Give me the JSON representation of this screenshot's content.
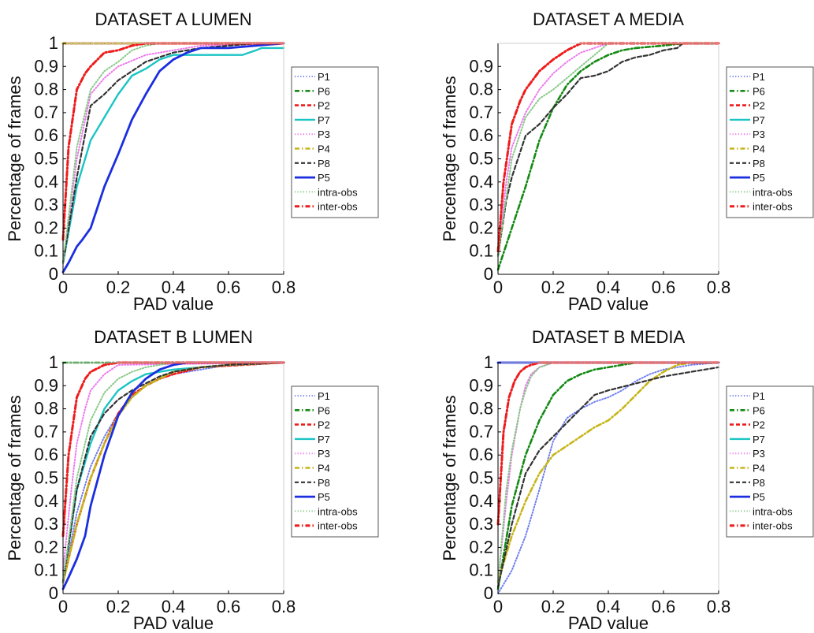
{
  "colors": {
    "P1": "#6f7ff0",
    "P6": "#138a13",
    "P2": "#ee1c1c",
    "P7": "#1cc4c4",
    "P3": "#ee77ee",
    "P4": "#c6b618",
    "P8": "#333333",
    "P5": "#1b2ee0",
    "intra-obs": "#87c987",
    "inter-obs": "#ee1c1c"
  },
  "chart_data": [
    {
      "type": "line",
      "title": "DATASET A LUMEN",
      "xlabel": "PAD value",
      "ylabel": "Percentage of frames",
      "xlim": [
        0,
        0.8
      ],
      "ylim": [
        0,
        1
      ],
      "xticks": [
        "0",
        "0.2",
        "0.4",
        "0.6",
        "0.8"
      ],
      "yticks": [
        "0",
        "0.1",
        "0.2",
        "0.3",
        "0.4",
        "0.5",
        "0.6",
        "0.7",
        "0.8",
        "0.9",
        "1"
      ],
      "legend": [
        "P1",
        "P6",
        "P2",
        "P7",
        "P3",
        "P4",
        "P8",
        "P5",
        "intra-obs",
        "inter-obs"
      ],
      "series": [
        {
          "name": "P1",
          "style": "dotted",
          "x": [
            0,
            0.8
          ],
          "y": [
            1,
            1
          ]
        },
        {
          "name": "P6",
          "style": "dashdot",
          "x": [
            0,
            0.8
          ],
          "y": [
            1,
            1
          ]
        },
        {
          "name": "P2",
          "style": "dashed",
          "x": [
            0,
            0.8
          ],
          "y": [
            1,
            1
          ]
        },
        {
          "name": "P7",
          "style": "solid",
          "x": [
            0,
            0.05,
            0.1,
            0.15,
            0.2,
            0.25,
            0.3,
            0.35,
            0.4,
            0.5,
            0.6,
            0.65,
            0.7,
            0.72,
            0.8
          ],
          "y": [
            0.05,
            0.38,
            0.58,
            0.68,
            0.78,
            0.86,
            0.89,
            0.93,
            0.95,
            0.95,
            0.95,
            0.95,
            0.97,
            0.98,
            0.98
          ]
        },
        {
          "name": "P3",
          "style": "dotted",
          "x": [
            0,
            0.05,
            0.1,
            0.15,
            0.2,
            0.3,
            0.4,
            0.5,
            0.8
          ],
          "y": [
            0.05,
            0.5,
            0.78,
            0.85,
            0.9,
            0.95,
            0.97,
            0.99,
            1
          ]
        },
        {
          "name": "P4",
          "style": "dashdot",
          "x": [
            0,
            0.8
          ],
          "y": [
            1,
            1
          ]
        },
        {
          "name": "P8",
          "style": "dashed",
          "x": [
            0,
            0.05,
            0.1,
            0.15,
            0.2,
            0.25,
            0.3,
            0.4,
            0.5,
            0.6,
            0.7,
            0.8
          ],
          "y": [
            0.05,
            0.42,
            0.73,
            0.78,
            0.84,
            0.88,
            0.92,
            0.96,
            0.98,
            0.99,
            1,
            1
          ]
        },
        {
          "name": "P5",
          "style": "solid",
          "x": [
            0,
            0.02,
            0.05,
            0.07,
            0.1,
            0.15,
            0.2,
            0.25,
            0.3,
            0.35,
            0.4,
            0.45,
            0.5,
            0.6,
            0.7,
            0.8
          ],
          "y": [
            0.01,
            0.05,
            0.12,
            0.15,
            0.2,
            0.38,
            0.52,
            0.67,
            0.78,
            0.88,
            0.93,
            0.96,
            0.98,
            0.98,
            0.99,
            1
          ]
        },
        {
          "name": "intra-obs",
          "style": "dotted",
          "x": [
            0,
            0.05,
            0.1,
            0.15,
            0.2,
            0.25,
            0.3,
            0.35,
            0.8
          ],
          "y": [
            0.05,
            0.55,
            0.8,
            0.88,
            0.92,
            0.97,
            0.99,
            1,
            1
          ]
        },
        {
          "name": "inter-obs",
          "style": "dashdot",
          "x": [
            0,
            0.02,
            0.05,
            0.08,
            0.1,
            0.15,
            0.2,
            0.25,
            0.3,
            0.35,
            0.8
          ],
          "y": [
            0.15,
            0.55,
            0.8,
            0.87,
            0.9,
            0.96,
            0.97,
            0.99,
            1,
            1,
            1
          ]
        }
      ]
    },
    {
      "type": "line",
      "title": "DATASET A MEDIA",
      "xlabel": "PAD value",
      "ylabel": "Percentage of frames",
      "xlim": [
        0,
        0.8
      ],
      "ylim": [
        0,
        1
      ],
      "xticks": [
        "0",
        "0.2",
        "0.4",
        "0.6",
        "0.8"
      ],
      "yticks": [
        "0",
        "0.1",
        "0.2",
        "0.3",
        "0.4",
        "0.5",
        "0.6",
        "0.7",
        "0.8",
        "0.9"
      ],
      "legend": [
        "P1",
        "P6",
        "P2",
        "P7",
        "P3",
        "P4",
        "P8",
        "P5",
        "intra-obs",
        "inter-obs"
      ],
      "series": [
        {
          "name": "P6",
          "style": "dashdot",
          "x": [
            0,
            0.05,
            0.1,
            0.15,
            0.2,
            0.25,
            0.3,
            0.35,
            0.4,
            0.45,
            0.5,
            0.6,
            0.67,
            0.8
          ],
          "y": [
            0.02,
            0.2,
            0.38,
            0.58,
            0.72,
            0.82,
            0.88,
            0.92,
            0.95,
            0.97,
            0.98,
            0.99,
            1,
            1
          ]
        },
        {
          "name": "P3",
          "style": "dotted",
          "x": [
            0,
            0.03,
            0.05,
            0.1,
            0.15,
            0.2,
            0.25,
            0.3,
            0.4,
            0.8
          ],
          "y": [
            0.08,
            0.4,
            0.55,
            0.7,
            0.8,
            0.87,
            0.92,
            0.96,
            1,
            1
          ]
        },
        {
          "name": "P8",
          "style": "dashed",
          "x": [
            0,
            0.03,
            0.05,
            0.1,
            0.15,
            0.2,
            0.25,
            0.3,
            0.35,
            0.4,
            0.45,
            0.5,
            0.55,
            0.6,
            0.65,
            0.67,
            0.8
          ],
          "y": [
            0.08,
            0.32,
            0.42,
            0.6,
            0.65,
            0.72,
            0.78,
            0.85,
            0.86,
            0.88,
            0.92,
            0.94,
            0.95,
            0.97,
            0.98,
            1,
            1
          ]
        },
        {
          "name": "intra-obs",
          "style": "dotted",
          "x": [
            0,
            0.05,
            0.1,
            0.15,
            0.2,
            0.25,
            0.3,
            0.35,
            0.4,
            0.8
          ],
          "y": [
            0.08,
            0.5,
            0.68,
            0.76,
            0.8,
            0.85,
            0.9,
            0.95,
            1,
            1
          ]
        },
        {
          "name": "inter-obs",
          "style": "dashdot",
          "x": [
            0,
            0.02,
            0.05,
            0.08,
            0.1,
            0.15,
            0.2,
            0.25,
            0.3,
            0.8
          ],
          "y": [
            0.1,
            0.4,
            0.65,
            0.75,
            0.8,
            0.88,
            0.93,
            0.97,
            1,
            1
          ]
        }
      ]
    },
    {
      "type": "line",
      "title": "DATASET B LUMEN",
      "xlabel": "PAD value",
      "ylabel": "Percentage of frames",
      "xlim": [
        0,
        0.8
      ],
      "ylim": [
        0,
        1
      ],
      "xticks": [
        "0",
        "0.2",
        "0.4",
        "0.6",
        "0.8"
      ],
      "yticks": [
        "0",
        "0.1",
        "0.2",
        "0.3",
        "0.4",
        "0.5",
        "0.6",
        "0.7",
        "0.8",
        "0.9",
        "1"
      ],
      "legend": [
        "P1",
        "P6",
        "P2",
        "P7",
        "P3",
        "P4",
        "P8",
        "P5",
        "intra-obs",
        "inter-obs"
      ],
      "series": [
        {
          "name": "P1",
          "style": "dotted",
          "x": [
            0,
            0.05,
            0.1,
            0.15,
            0.2,
            0.25,
            0.3,
            0.35,
            0.4,
            0.5,
            0.6,
            0.8
          ],
          "y": [
            0.05,
            0.35,
            0.55,
            0.68,
            0.78,
            0.85,
            0.9,
            0.93,
            0.95,
            0.97,
            0.99,
            1
          ]
        },
        {
          "name": "P6",
          "style": "dashdot",
          "x": [
            0,
            0.8
          ],
          "y": [
            1,
            1
          ]
        },
        {
          "name": "P2",
          "style": "dashed",
          "x": [
            0,
            0.05,
            0.1,
            0.15,
            0.2,
            0.25,
            0.3,
            0.35,
            0.4,
            0.5,
            0.8
          ],
          "y": [
            0.05,
            0.3,
            0.5,
            0.65,
            0.78,
            0.86,
            0.9,
            0.93,
            0.95,
            0.98,
            1
          ]
        },
        {
          "name": "P7",
          "style": "solid",
          "x": [
            0,
            0.05,
            0.1,
            0.15,
            0.2,
            0.25,
            0.3,
            0.35,
            0.4,
            0.5,
            0.6,
            0.8
          ],
          "y": [
            0.05,
            0.45,
            0.65,
            0.8,
            0.88,
            0.92,
            0.95,
            0.96,
            0.97,
            0.98,
            0.99,
            1
          ]
        },
        {
          "name": "P3",
          "style": "dotted",
          "x": [
            0,
            0.03,
            0.05,
            0.08,
            0.1,
            0.15,
            0.2,
            0.8
          ],
          "y": [
            0.1,
            0.45,
            0.65,
            0.8,
            0.88,
            0.95,
            0.99,
            1
          ]
        },
        {
          "name": "P4",
          "style": "dashdot",
          "x": [
            0,
            0.05,
            0.1,
            0.15,
            0.2,
            0.25,
            0.3,
            0.35,
            0.4,
            0.5,
            0.6,
            0.8
          ],
          "y": [
            0.05,
            0.3,
            0.5,
            0.65,
            0.77,
            0.85,
            0.9,
            0.93,
            0.96,
            0.98,
            0.99,
            1
          ]
        },
        {
          "name": "P8",
          "style": "dashed",
          "x": [
            0,
            0.05,
            0.1,
            0.15,
            0.2,
            0.25,
            0.3,
            0.35,
            0.4,
            0.5,
            0.6,
            0.8
          ],
          "y": [
            0.05,
            0.45,
            0.68,
            0.78,
            0.84,
            0.88,
            0.91,
            0.94,
            0.96,
            0.98,
            0.99,
            1
          ]
        },
        {
          "name": "P5",
          "style": "solid",
          "x": [
            0,
            0.02,
            0.05,
            0.08,
            0.1,
            0.15,
            0.2,
            0.25,
            0.3,
            0.35,
            0.4,
            0.45,
            0.8
          ],
          "y": [
            0.02,
            0.07,
            0.15,
            0.25,
            0.38,
            0.6,
            0.77,
            0.87,
            0.93,
            0.97,
            0.99,
            1,
            1
          ]
        },
        {
          "name": "intra-obs",
          "style": "dotted",
          "x": [
            0,
            0.05,
            0.1,
            0.15,
            0.2,
            0.25,
            0.3,
            0.35,
            0.4,
            0.8
          ],
          "y": [
            0.05,
            0.5,
            0.75,
            0.87,
            0.93,
            0.96,
            0.98,
            0.99,
            1,
            1
          ]
        },
        {
          "name": "inter-obs",
          "style": "dashdot",
          "x": [
            0,
            0.02,
            0.05,
            0.08,
            0.1,
            0.15,
            0.2,
            0.8
          ],
          "y": [
            0.25,
            0.6,
            0.85,
            0.93,
            0.96,
            0.99,
            1,
            1
          ]
        }
      ]
    },
    {
      "type": "line",
      "title": "DATASET B MEDIA",
      "xlabel": "PAD value",
      "ylabel": "Percentage of frames",
      "xlim": [
        0,
        0.8
      ],
      "ylim": [
        0,
        1
      ],
      "xticks": [
        "0",
        "0.2",
        "0.4",
        "0.6",
        "0.8"
      ],
      "yticks": [
        "0",
        "0.1",
        "0.2",
        "0.3",
        "0.4",
        "0.5",
        "0.6",
        "0.7",
        "0.8",
        "0.9",
        "1"
      ],
      "legend": [
        "P1",
        "P6",
        "P2",
        "P7",
        "P3",
        "P4",
        "P8",
        "P5",
        "intra-obs",
        "inter-obs"
      ],
      "series": [
        {
          "name": "P1",
          "style": "dotted",
          "x": [
            0,
            0.05,
            0.1,
            0.15,
            0.2,
            0.25,
            0.3,
            0.35,
            0.4,
            0.45,
            0.5,
            0.55,
            0.6,
            0.65,
            0.7,
            0.8
          ],
          "y": [
            0,
            0.1,
            0.25,
            0.45,
            0.66,
            0.76,
            0.8,
            0.83,
            0.85,
            0.88,
            0.92,
            0.95,
            0.97,
            0.98,
            0.99,
            1
          ]
        },
        {
          "name": "P6",
          "style": "dashdot",
          "x": [
            0,
            0.05,
            0.1,
            0.15,
            0.2,
            0.25,
            0.3,
            0.35,
            0.4,
            0.45,
            0.5,
            0.6,
            0.8
          ],
          "y": [
            0.02,
            0.38,
            0.6,
            0.75,
            0.86,
            0.92,
            0.95,
            0.97,
            0.98,
            0.99,
            1,
            1,
            1
          ]
        },
        {
          "name": "P5",
          "style": "solid",
          "x": [
            0,
            0.8
          ],
          "y": [
            1,
            1
          ]
        },
        {
          "name": "P3",
          "style": "dotted",
          "x": [
            0,
            0.03,
            0.05,
            0.08,
            0.1,
            0.12,
            0.15,
            0.2,
            0.8
          ],
          "y": [
            0.05,
            0.4,
            0.6,
            0.8,
            0.9,
            0.95,
            0.98,
            1,
            1
          ]
        },
        {
          "name": "P4",
          "style": "dashdot",
          "x": [
            0,
            0.05,
            0.1,
            0.15,
            0.2,
            0.25,
            0.3,
            0.35,
            0.4,
            0.45,
            0.5,
            0.55,
            0.6,
            0.65,
            0.7,
            0.8
          ],
          "y": [
            0.05,
            0.25,
            0.4,
            0.52,
            0.6,
            0.64,
            0.68,
            0.72,
            0.75,
            0.8,
            0.86,
            0.92,
            0.96,
            0.99,
            1,
            1
          ]
        },
        {
          "name": "P8",
          "style": "dashed",
          "x": [
            0,
            0.05,
            0.1,
            0.15,
            0.2,
            0.25,
            0.3,
            0.35,
            0.4,
            0.5,
            0.6,
            0.7,
            0.8
          ],
          "y": [
            0.03,
            0.3,
            0.52,
            0.62,
            0.68,
            0.74,
            0.8,
            0.86,
            0.88,
            0.91,
            0.94,
            0.96,
            0.98
          ]
        },
        {
          "name": "intra-obs",
          "style": "dotted",
          "x": [
            0,
            0.03,
            0.05,
            0.08,
            0.1,
            0.12,
            0.15,
            0.2,
            0.8
          ],
          "y": [
            0.05,
            0.45,
            0.62,
            0.8,
            0.88,
            0.94,
            0.98,
            1,
            1
          ]
        },
        {
          "name": "inter-obs",
          "style": "dashdot",
          "x": [
            0,
            0.01,
            0.02,
            0.04,
            0.06,
            0.08,
            0.1,
            0.12,
            0.15,
            0.8
          ],
          "y": [
            0.3,
            0.5,
            0.7,
            0.85,
            0.92,
            0.96,
            0.98,
            0.99,
            1,
            1
          ]
        }
      ]
    }
  ]
}
